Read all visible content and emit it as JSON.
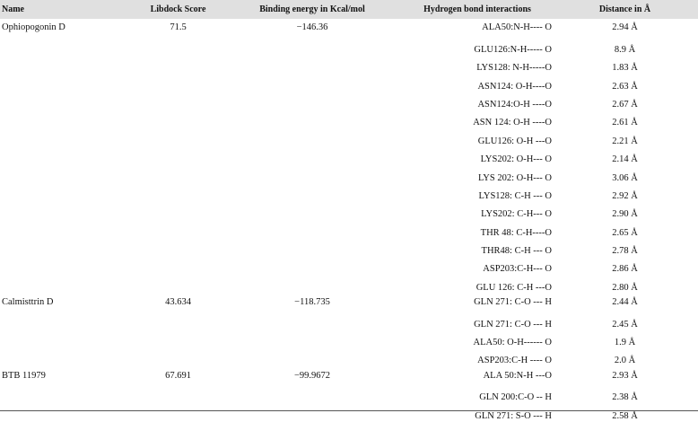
{
  "table": {
    "headers": {
      "name": "Name",
      "score": "Libdock Score",
      "energy": "Binding energy in Kcal/mol",
      "hbond": "Hydrogen bond interactions",
      "distance": "Distance in Å"
    },
    "rows": [
      {
        "name": "Ophiopogonin D",
        "score": "71.5",
        "energy": "−146.36",
        "hbond": "ALA50:N-H---- O",
        "distance": "2.94 Å"
      },
      {
        "name": "",
        "score": "",
        "energy": "",
        "hbond": "GLU126:N-H----- O",
        "distance": "8.9 Å"
      },
      {
        "name": "",
        "score": "",
        "energy": "",
        "hbond": "LYS128: N-H-----O",
        "distance": "1.83 Å"
      },
      {
        "name": "",
        "score": "",
        "energy": "",
        "hbond": "ASN124: O-H----O",
        "distance": "2.63 Å"
      },
      {
        "name": "",
        "score": "",
        "energy": "",
        "hbond": "ASN124:O-H ----O",
        "distance": "2.67 Å"
      },
      {
        "name": "",
        "score": "",
        "energy": "",
        "hbond": "ASN 124: O-H ----O",
        "distance": "2.61 Å"
      },
      {
        "name": "",
        "score": "",
        "energy": "",
        "hbond": "GLU126: O-H ---O",
        "distance": "2.21 Å"
      },
      {
        "name": "",
        "score": "",
        "energy": "",
        "hbond": "LYS202: O-H--- O",
        "distance": "2.14 Å"
      },
      {
        "name": "",
        "score": "",
        "energy": "",
        "hbond": "LYS 202: O-H--- O",
        "distance": "3.06 Å"
      },
      {
        "name": "",
        "score": "",
        "energy": "",
        "hbond": "LYS128: C-H --- O",
        "distance": "2.92 Å"
      },
      {
        "name": "",
        "score": "",
        "energy": "",
        "hbond": "LYS202: C-H--- O",
        "distance": "2.90 Å"
      },
      {
        "name": "",
        "score": "",
        "energy": "",
        "hbond": "THR 48: C-H----O",
        "distance": "2.65 Å"
      },
      {
        "name": "",
        "score": "",
        "energy": "",
        "hbond": "THR48: C-H --- O",
        "distance": "2.78 Å"
      },
      {
        "name": "",
        "score": "",
        "energy": "",
        "hbond": "ASP203:C-H--- O",
        "distance": "2.86 Å"
      },
      {
        "name": "",
        "score": "",
        "energy": "",
        "hbond": "GLU 126: C-H ---O",
        "distance": "2.80 Å"
      },
      {
        "name": "Calmisttrin D",
        "score": "43.634",
        "energy": "−118.735",
        "hbond": "GLN 271: C-O --- H",
        "distance": "2.44 Å"
      },
      {
        "name": "",
        "score": "",
        "energy": "",
        "hbond": "GLN 271: C-O --- H",
        "distance": "2.45 Å"
      },
      {
        "name": "",
        "score": "",
        "energy": "",
        "hbond": "ALA50: O-H------ O",
        "distance": "1.9 Å"
      },
      {
        "name": "",
        "score": "",
        "energy": "",
        "hbond": "ASP203:C-H ---- O",
        "distance": "2.0 Å"
      },
      {
        "name": "BTB 11979",
        "score": "67.691",
        "energy": "−99.9672",
        "hbond": "ALA 50:N-H ---O",
        "distance": "2.93 Å"
      },
      {
        "name": "",
        "score": "",
        "energy": "",
        "hbond": "GLN 200:C-O -- H",
        "distance": "2.38 Å"
      },
      {
        "name": "",
        "score": "",
        "energy": "",
        "hbond": "GLN 271: S-O --- H",
        "distance": "2.58 Å"
      }
    ]
  }
}
